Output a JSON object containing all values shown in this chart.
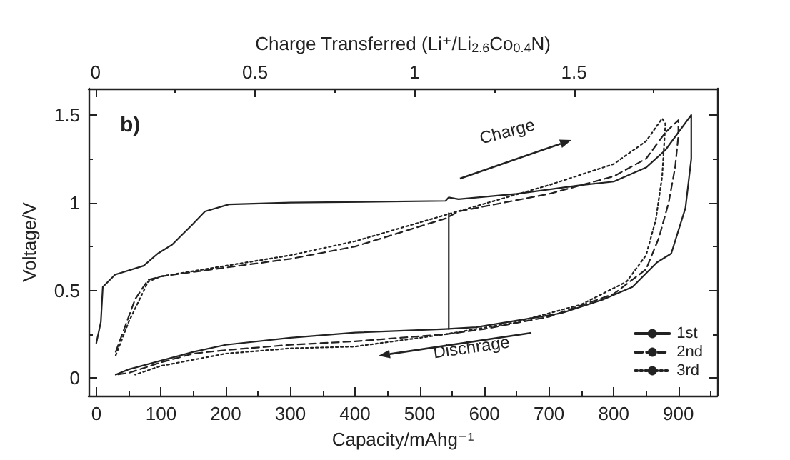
{
  "chart_data": {
    "type": "line",
    "xlabel": "Capacity/mAhg⁻¹",
    "ylabel": "Voltage/V",
    "x2label": "Charge Transferred (Li⁺/Li$_{2.6}$Co$_{0.4}$N)",
    "annotations": [
      "b)",
      "Charge",
      "Dischrage"
    ],
    "xlim": [
      -12,
      960
    ],
    "xticks": [
      0,
      100,
      200,
      300,
      400,
      500,
      600,
      700,
      800,
      900
    ],
    "x2lim": [
      -0.022,
      1.949
    ],
    "x2ticks": [
      0,
      0.5,
      1,
      1.5
    ],
    "ylim": [
      -0.1,
      1.65
    ],
    "yticks": [
      0,
      0.5,
      1,
      1.5
    ],
    "grid": false,
    "legend": "bottom right",
    "marker": "none",
    "series": [
      {
        "name": "1st",
        "color": "#222222",
        "line_style": "solid",
        "x": [
          0,
          7,
          10,
          29,
          73,
          95,
          117,
          147,
          168,
          205,
          300,
          540,
          545,
          560,
          650,
          750,
          800,
          850,
          880,
          920,
          920,
          911,
          889,
          867,
          829,
          785,
          719,
          587,
          540,
          400,
          300,
          200,
          150,
          100,
          50,
          30
        ],
        "values": [
          0.2,
          0.32,
          0.52,
          0.59,
          0.64,
          0.71,
          0.76,
          0.87,
          0.95,
          0.99,
          1.0,
          1.01,
          1.03,
          1.02,
          1.05,
          1.1,
          1.12,
          1.2,
          1.3,
          1.5,
          1.25,
          0.97,
          0.71,
          0.66,
          0.52,
          0.45,
          0.37,
          0.29,
          0.28,
          0.26,
          0.23,
          0.19,
          0.15,
          0.1,
          0.05,
          0.02
        ]
      },
      {
        "name": "2nd",
        "color": "#222222",
        "line_style": "dashed",
        "x": [
          30,
          50,
          60,
          80,
          100,
          200,
          300,
          400,
          540,
          560,
          700,
          800,
          850,
          880,
          900,
          900,
          895,
          885,
          870,
          850,
          800,
          700,
          600,
          540,
          400,
          300,
          200,
          150,
          100,
          50,
          30
        ],
        "values": [
          0.15,
          0.35,
          0.45,
          0.56,
          0.58,
          0.63,
          0.68,
          0.75,
          0.91,
          0.95,
          1.05,
          1.15,
          1.25,
          1.4,
          1.47,
          1.38,
          1.2,
          1.0,
          0.8,
          0.62,
          0.48,
          0.35,
          0.28,
          0.25,
          0.21,
          0.19,
          0.16,
          0.14,
          0.09,
          0.03,
          0.02
        ]
      },
      {
        "name": "3rd",
        "color": "#222222",
        "line_style": "dotted",
        "x": [
          30,
          50,
          80,
          100,
          200,
          300,
          400,
          540,
          700,
          800,
          850,
          875,
          880,
          875,
          865,
          850,
          820,
          750,
          650,
          540,
          400,
          300,
          200,
          100,
          60
        ],
        "values": [
          0.13,
          0.32,
          0.55,
          0.58,
          0.64,
          0.7,
          0.78,
          0.93,
          1.1,
          1.22,
          1.35,
          1.48,
          1.45,
          1.15,
          0.9,
          0.7,
          0.55,
          0.42,
          0.32,
          0.25,
          0.18,
          0.17,
          0.14,
          0.07,
          0.02
        ]
      },
      {
        "color": "#222222",
        "line_style": "solid",
        "x": [
          545,
          545
        ],
        "values": [
          0.28,
          0.94
        ]
      }
    ]
  }
}
